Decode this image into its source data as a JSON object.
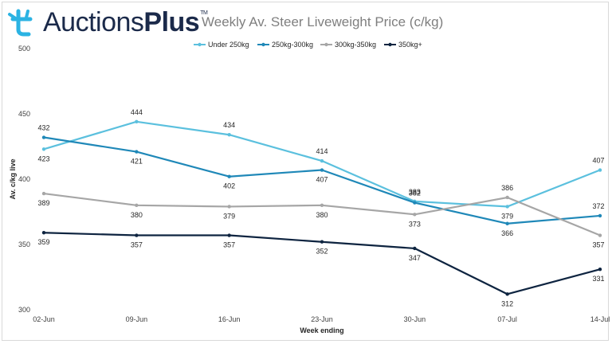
{
  "brand": {
    "name_regular": "Auctions",
    "name_bold": "Plus",
    "trademark": "TM"
  },
  "colors": {
    "brand_navy": "#1b2a4a",
    "brand_cyan": "#2bb3e3",
    "series": [
      "#5bc0de",
      "#1f88b8",
      "#a6a6a6",
      "#0e2440"
    ]
  },
  "chart_data": {
    "type": "line",
    "title": "Weekly Av. Steer Liveweight Price (c/kg)",
    "xlabel": "Week ending",
    "ylabel": "Av. c/kg live",
    "ylim": [
      300,
      500
    ],
    "yticks": [
      300,
      350,
      400,
      450,
      500
    ],
    "categories": [
      "02-Jun",
      "09-Jun",
      "16-Jun",
      "23-Jun",
      "30-Jun",
      "07-Jul",
      "14-Jul"
    ],
    "legend_position": "top",
    "grid": false,
    "series": [
      {
        "name": "Under 250kg",
        "values": [
          423,
          444,
          434,
          414,
          383,
          379,
          407
        ]
      },
      {
        "name": "250kg-300kg",
        "values": [
          432,
          421,
          402,
          407,
          382,
          366,
          372
        ]
      },
      {
        "name": "300kg-350kg",
        "values": [
          389,
          380,
          379,
          380,
          373,
          386,
          357
        ]
      },
      {
        "name": "350kg+",
        "values": [
          359,
          357,
          357,
          352,
          347,
          312,
          331
        ]
      }
    ]
  }
}
